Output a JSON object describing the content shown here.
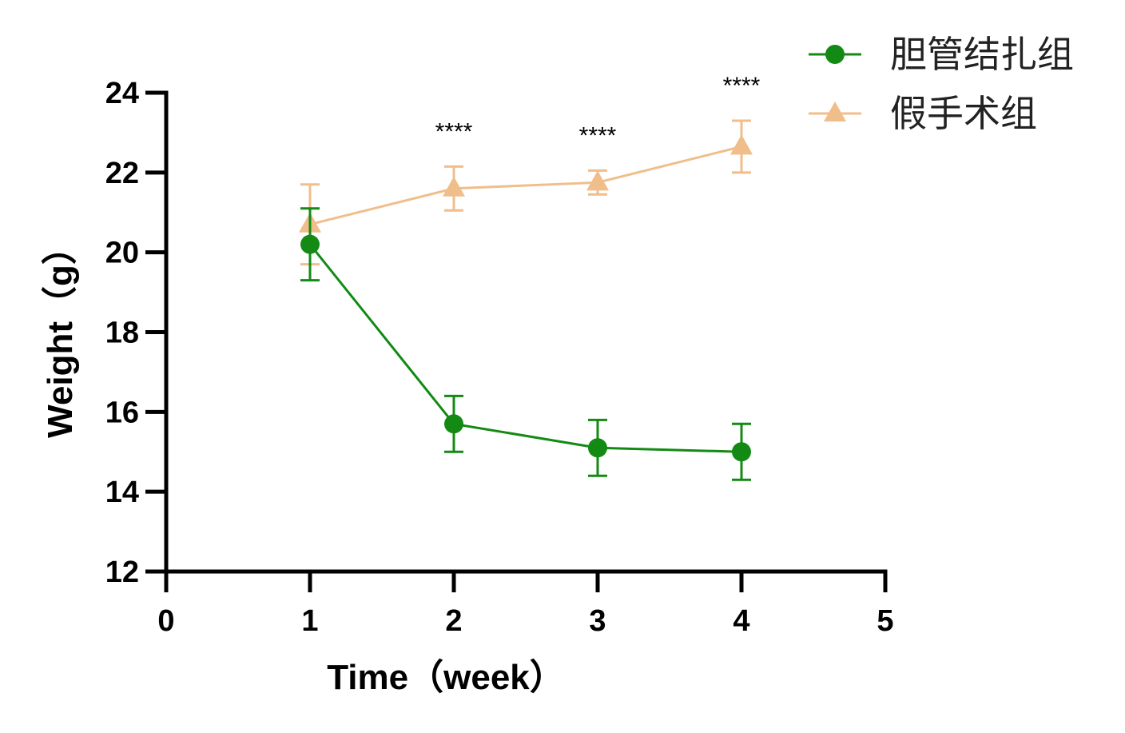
{
  "chart_data": {
    "type": "line",
    "xlabel": "Time（week）",
    "ylabel": "Weight（g）",
    "xlim": [
      0,
      5
    ],
    "ylim": [
      12,
      24
    ],
    "x_ticks": [
      0,
      1,
      2,
      3,
      4,
      5
    ],
    "y_ticks": [
      12,
      14,
      16,
      18,
      20,
      22,
      24
    ],
    "grid": false,
    "legend_position": "top-right",
    "x": [
      1,
      2,
      3,
      4
    ],
    "series": [
      {
        "name": "胆管结扎组",
        "color": "#138a13",
        "marker": "circle",
        "values": [
          20.2,
          15.7,
          15.1,
          15.0
        ],
        "error": [
          0.9,
          0.7,
          0.7,
          0.7
        ]
      },
      {
        "name": "假手术组",
        "color": "#f0be8a",
        "marker": "triangle",
        "values": [
          20.7,
          21.6,
          21.75,
          22.65
        ],
        "error": [
          1.0,
          0.55,
          0.3,
          0.65
        ]
      }
    ],
    "annotations": [
      {
        "x": 2,
        "text": "****"
      },
      {
        "x": 3,
        "text": "****"
      },
      {
        "x": 4,
        "text": "****"
      }
    ]
  }
}
